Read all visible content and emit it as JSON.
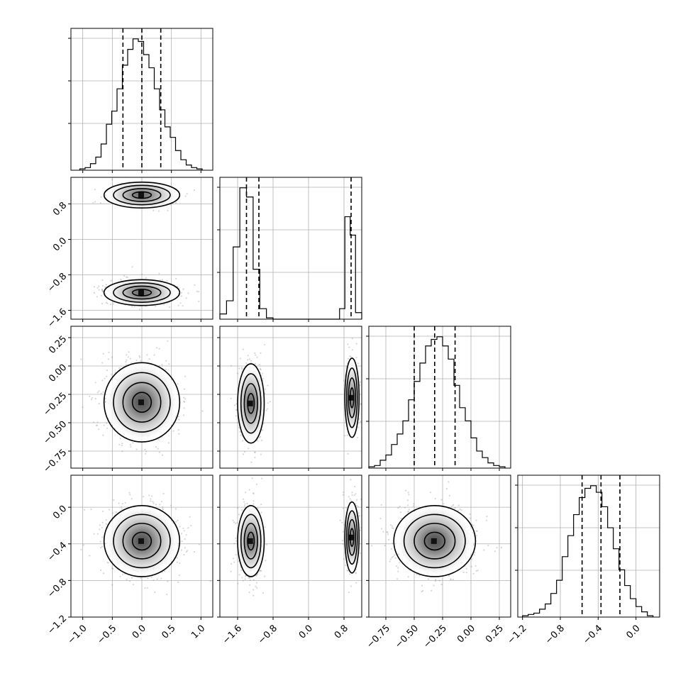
{
  "chart_data": {
    "type": "corner",
    "title": "",
    "parameters": [
      "",
      "",
      "",
      ""
    ],
    "grid": true,
    "colors": {
      "line": "#000000",
      "grid": "#b0b0b0",
      "points": "#8c8c8c"
    },
    "marginals": [
      {
        "type": "histogram",
        "x_range": [
          -1.2,
          1.2
        ],
        "quantiles": [
          -0.32,
          0.0,
          0.32
        ],
        "bins": [
          -1.05,
          -0.96,
          -0.87,
          -0.78,
          -0.69,
          -0.6,
          -0.51,
          -0.42,
          -0.33,
          -0.24,
          -0.15,
          -0.06,
          0.03,
          0.12,
          0.21,
          0.3,
          0.39,
          0.48,
          0.57,
          0.66,
          0.75,
          0.84,
          0.93,
          1.02
        ],
        "counts": [
          1,
          2,
          5,
          10,
          20,
          35,
          45,
          62,
          80,
          92,
          100,
          98,
          88,
          78,
          62,
          46,
          33,
          25,
          15,
          8,
          4,
          2,
          1
        ]
      },
      {
        "type": "histogram",
        "x_range": [
          -2.0,
          1.2
        ],
        "quantiles": [
          -1.4,
          -1.12,
          0.96
        ],
        "bins": [
          -2.0,
          -1.85,
          -1.7,
          -1.55,
          -1.4,
          -1.25,
          -1.1,
          -0.95,
          -0.8,
          0.7,
          0.82,
          0.94,
          1.06,
          1.2
        ],
        "counts": [
          4,
          14,
          55,
          100,
          93,
          38,
          8,
          1,
          0,
          8,
          78,
          64,
          5
        ]
      },
      {
        "type": "histogram",
        "x_range": [
          -0.9,
          0.35
        ],
        "quantiles": [
          -0.5,
          -0.32,
          -0.14
        ],
        "bins": [
          -0.9,
          -0.85,
          -0.8,
          -0.75,
          -0.7,
          -0.65,
          -0.6,
          -0.55,
          -0.5,
          -0.45,
          -0.4,
          -0.35,
          -0.3,
          -0.25,
          -0.2,
          -0.15,
          -0.1,
          -0.05,
          0.0,
          0.05,
          0.1,
          0.15,
          0.2,
          0.25,
          0.3
        ],
        "counts": [
          1,
          2,
          6,
          10,
          18,
          26,
          36,
          52,
          66,
          80,
          93,
          98,
          100,
          93,
          83,
          63,
          46,
          36,
          23,
          13,
          8,
          4,
          2,
          1
        ]
      },
      {
        "type": "histogram",
        "x_range": [
          -1.25,
          0.25
        ],
        "quantiles": [
          -0.57,
          -0.37,
          -0.17
        ],
        "bins": [
          -1.2,
          -1.14,
          -1.08,
          -1.02,
          -0.96,
          -0.9,
          -0.84,
          -0.78,
          -0.72,
          -0.66,
          -0.6,
          -0.54,
          -0.48,
          -0.42,
          -0.36,
          -0.3,
          -0.24,
          -0.18,
          -0.12,
          -0.06,
          0.0,
          0.06,
          0.12,
          0.18
        ],
        "counts": [
          1,
          2,
          3,
          6,
          10,
          18,
          28,
          46,
          62,
          78,
          91,
          98,
          100,
          95,
          84,
          68,
          52,
          36,
          24,
          14,
          8,
          4,
          1
        ]
      }
    ],
    "pairs": [
      {
        "row": 1,
        "col": 0,
        "clusters": [
          {
            "mx": 0.0,
            "my": 1.0,
            "sx": 0.32,
            "sy": 0.15,
            "n": 260
          },
          {
            "mx": 0.0,
            "my": -1.2,
            "sx": 0.32,
            "sy": 0.15,
            "n": 420
          }
        ]
      },
      {
        "row": 2,
        "col": 0,
        "clusters": [
          {
            "mx": 0.0,
            "my": -0.32,
            "sx": 0.32,
            "sy": 0.18,
            "n": 700
          }
        ]
      },
      {
        "row": 2,
        "col": 1,
        "clusters": [
          {
            "mx": -1.3,
            "my": -0.33,
            "sx": 0.15,
            "sy": 0.18,
            "n": 430
          },
          {
            "mx": 0.98,
            "my": -0.28,
            "sx": 0.08,
            "sy": 0.18,
            "n": 260
          }
        ]
      },
      {
        "row": 3,
        "col": 0,
        "clusters": [
          {
            "mx": 0.0,
            "my": -0.37,
            "sx": 0.32,
            "sy": 0.2,
            "n": 700
          }
        ]
      },
      {
        "row": 3,
        "col": 1,
        "clusters": [
          {
            "mx": -1.3,
            "my": -0.37,
            "sx": 0.15,
            "sy": 0.2,
            "n": 430
          },
          {
            "mx": 0.98,
            "my": -0.33,
            "sx": 0.08,
            "sy": 0.2,
            "n": 260
          }
        ]
      },
      {
        "row": 3,
        "col": 2,
        "clusters": [
          {
            "mx": -0.32,
            "my": -0.37,
            "sx": 0.18,
            "sy": 0.2,
            "n": 700
          }
        ]
      }
    ],
    "axes": {
      "col_ranges": [
        [
          -1.2,
          1.2
        ],
        [
          -2.0,
          1.2
        ],
        [
          -0.9,
          0.35
        ],
        [
          -1.25,
          0.25
        ]
      ],
      "row_ranges": [
        null,
        [
          -1.8,
          1.4
        ],
        [
          -0.9,
          0.35
        ],
        [
          -1.2,
          0.35
        ]
      ],
      "x_ticks": [
        [
          -1.0,
          -0.5,
          0.0,
          0.5,
          1.0
        ],
        [
          -1.6,
          -0.8,
          0.0,
          0.8
        ],
        [
          -0.75,
          -0.5,
          -0.25,
          0.0,
          0.25
        ],
        [
          -1.2,
          -0.8,
          -0.4,
          0.0
        ]
      ],
      "x_tick_labels": [
        [
          "−1.0",
          "−0.5",
          "0.0",
          "0.5",
          "1.0"
        ],
        [
          "−1.6",
          "−0.8",
          "0.0",
          "0.8"
        ],
        [
          "−0.75",
          "−0.50",
          "−0.25",
          "0.00",
          "0.25"
        ],
        [
          "−1.2",
          "−0.8",
          "−0.4",
          "0.0"
        ]
      ],
      "y_ticks": [
        null,
        [
          -1.6,
          -0.8,
          0.0,
          0.8
        ],
        [
          -0.75,
          -0.5,
          -0.25,
          0.0,
          0.25
        ],
        [
          -1.2,
          -0.8,
          -0.4,
          0.0
        ]
      ],
      "y_tick_labels": [
        null,
        [
          "−1.6",
          "−0.8",
          "0.0",
          "0.8"
        ],
        [
          "−0.75",
          "−0.50",
          "−0.25",
          "0.00",
          "0.25"
        ],
        [
          "−1.2",
          "−0.8",
          "−0.4",
          "0.0"
        ]
      ]
    }
  }
}
